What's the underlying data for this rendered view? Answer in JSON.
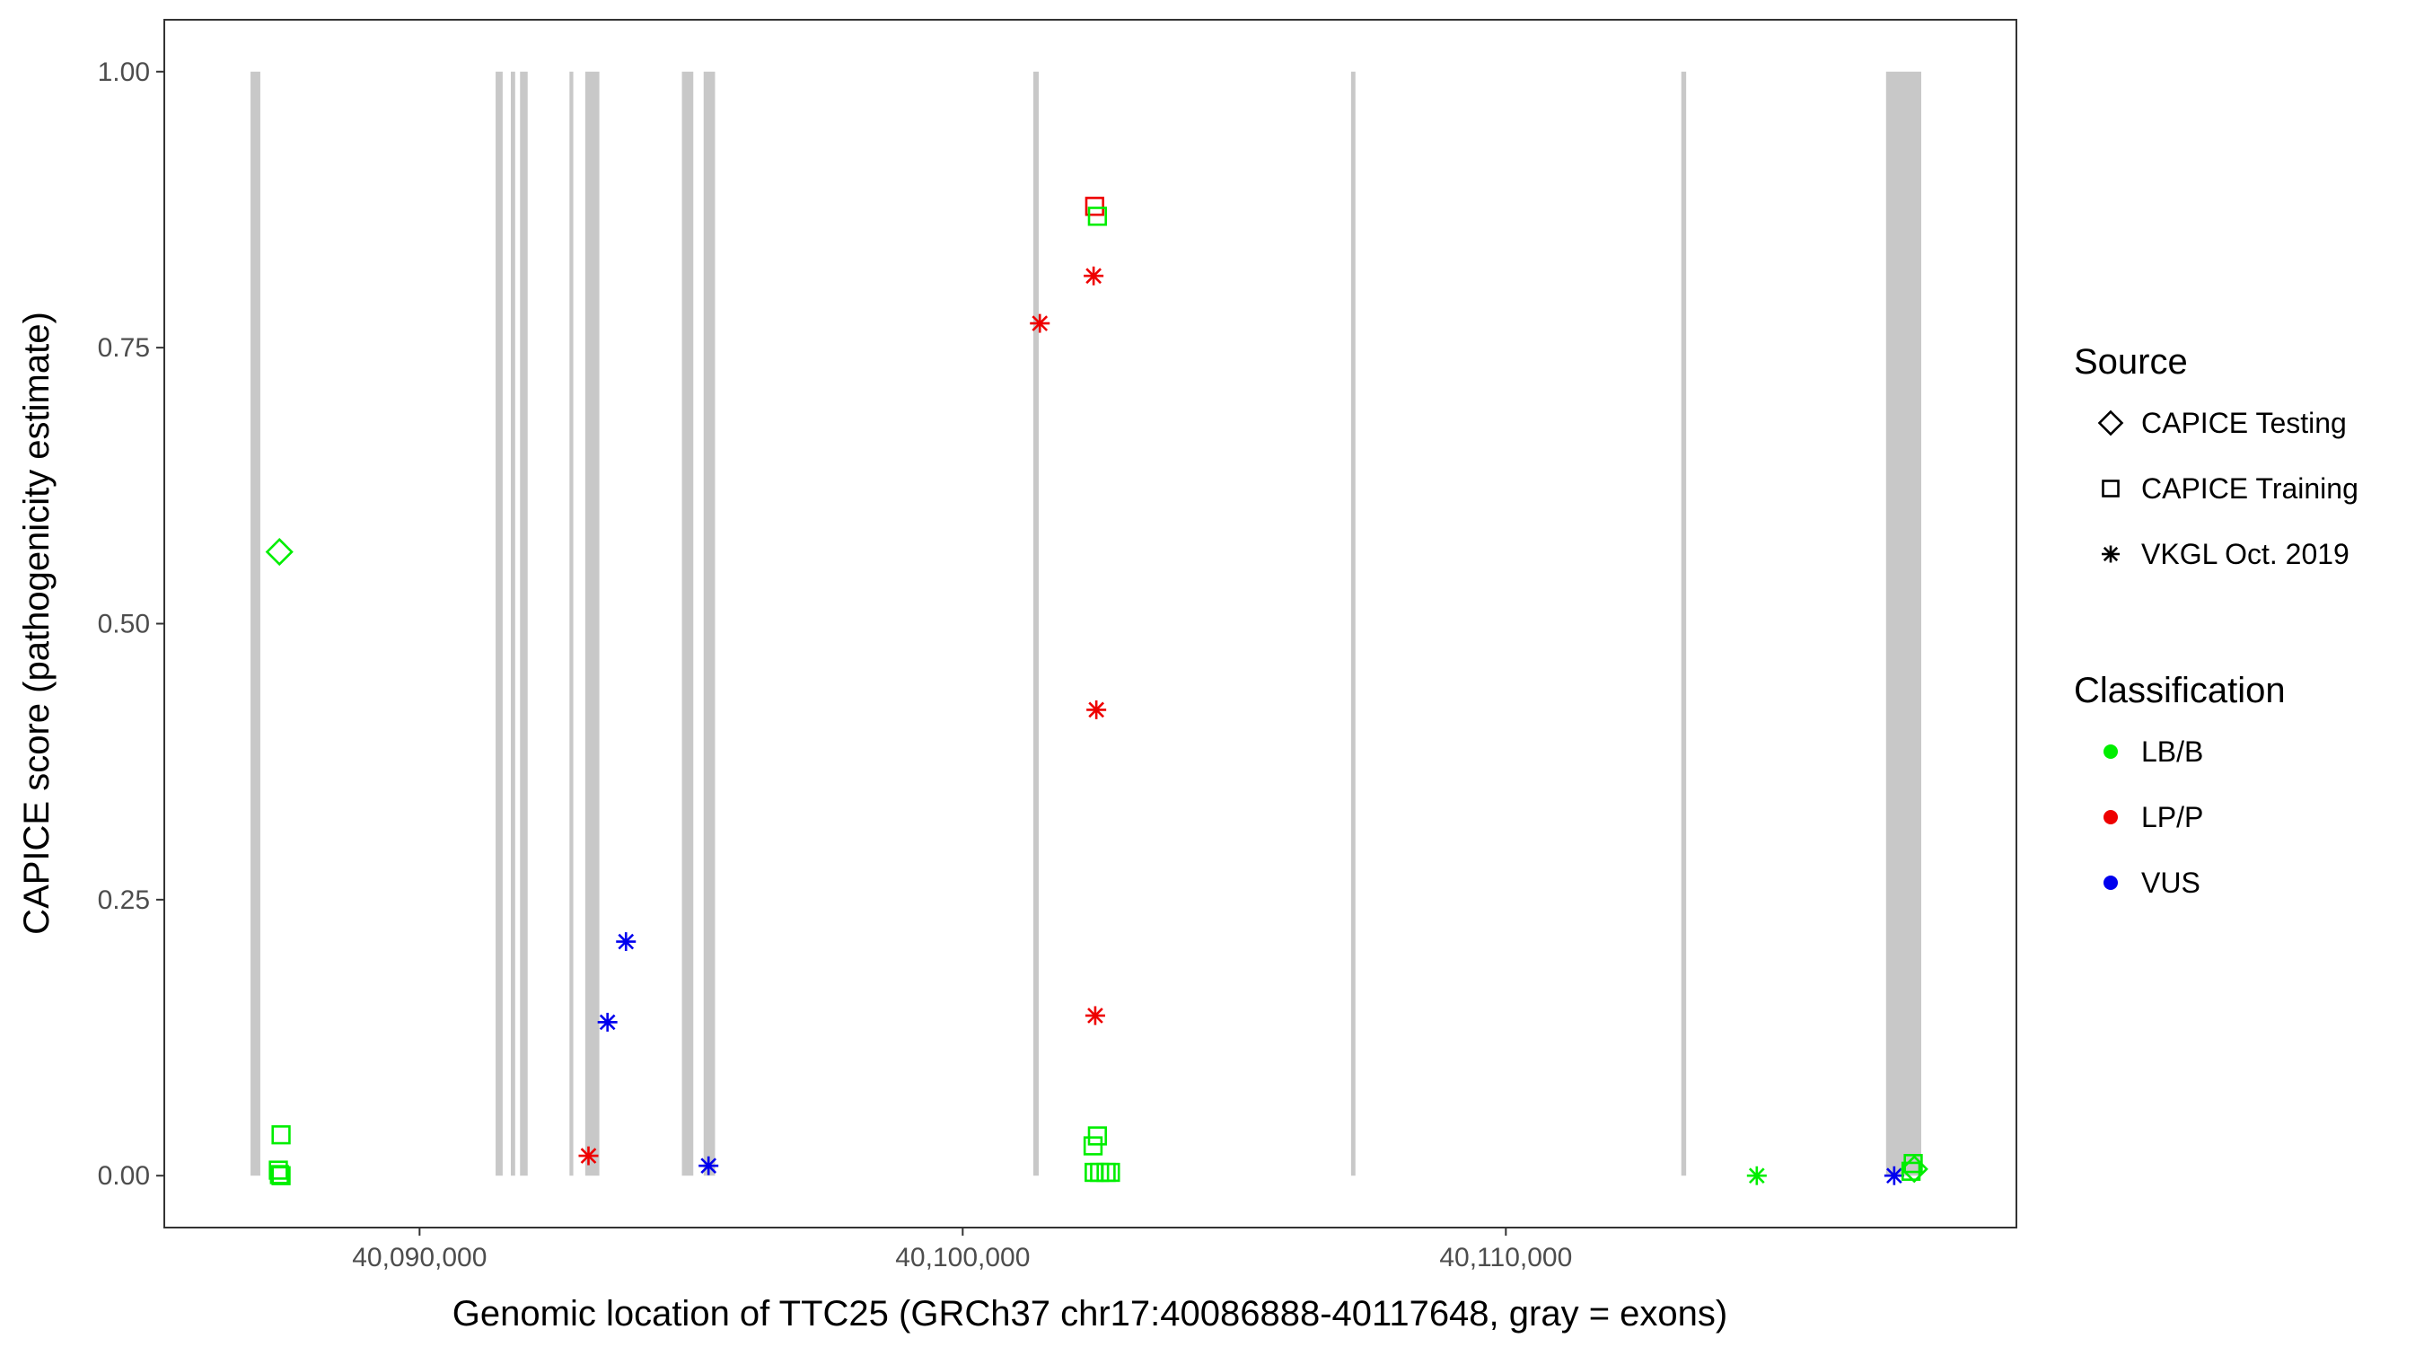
{
  "chart_data": {
    "type": "scatter",
    "xlabel": "Genomic location of TTC25 (GRCh37 chr17:40086888-40117648, gray = exons)",
    "ylabel": "CAPICE score (pathogenicity estimate)",
    "xlim": [
      40085300,
      40119400
    ],
    "ylim": [
      -0.047,
      1.047
    ],
    "x_ticks": [
      {
        "value": 40090000,
        "label": "40,090,000"
      },
      {
        "value": 40100000,
        "label": "40,100,000"
      },
      {
        "value": 40110000,
        "label": "40,110,000"
      }
    ],
    "y_ticks": [
      {
        "value": 0.0,
        "label": "0.00"
      },
      {
        "value": 0.25,
        "label": "0.25"
      },
      {
        "value": 0.5,
        "label": "0.50"
      },
      {
        "value": 0.75,
        "label": "0.75"
      },
      {
        "value": 1.0,
        "label": "1.00"
      }
    ],
    "grid": false,
    "exon_color": "#c8c8c8",
    "exons": [
      [
        40086888,
        40087068
      ],
      [
        40091400,
        40091530
      ],
      [
        40091680,
        40091760
      ],
      [
        40091850,
        40091990
      ],
      [
        40092760,
        40092830
      ],
      [
        40093050,
        40093310
      ],
      [
        40094830,
        40095040
      ],
      [
        40095230,
        40095440
      ],
      [
        40101300,
        40101400
      ],
      [
        40107150,
        40107230
      ],
      [
        40113230,
        40113320
      ],
      [
        40117000,
        40117648
      ]
    ],
    "legend": {
      "placement": "right",
      "source": {
        "title": "Source",
        "entries": [
          {
            "label": "CAPICE Testing",
            "shape": "diamond"
          },
          {
            "label": "CAPICE Training",
            "shape": "square"
          },
          {
            "label": "VKGL Oct. 2019",
            "shape": "asterisk"
          }
        ]
      },
      "classification": {
        "title": "Classification",
        "entries": [
          {
            "label": "LB/B",
            "color": "#00ee00"
          },
          {
            "label": "LP/P",
            "color": "#ee0000"
          },
          {
            "label": "VUS",
            "color": "#0000ee"
          }
        ]
      }
    },
    "points": [
      {
        "x": 40087420,
        "y": 0.565,
        "source": "CAPICE Testing",
        "class": "LB/B"
      },
      {
        "x": 40087450,
        "y": 0.037,
        "source": "CAPICE Training",
        "class": "LB/B"
      },
      {
        "x": 40087400,
        "y": 0.005,
        "source": "CAPICE Training",
        "class": "LB/B"
      },
      {
        "x": 40087420,
        "y": 0.001,
        "source": "CAPICE Training",
        "class": "LB/B"
      },
      {
        "x": 40087450,
        "y": 0.0,
        "source": "CAPICE Training",
        "class": "LB/B"
      },
      {
        "x": 40093110,
        "y": 0.018,
        "source": "VKGL Oct. 2019",
        "class": "LP/P"
      },
      {
        "x": 40093460,
        "y": 0.139,
        "source": "VKGL Oct. 2019",
        "class": "VUS"
      },
      {
        "x": 40093800,
        "y": 0.212,
        "source": "VKGL Oct. 2019",
        "class": "VUS"
      },
      {
        "x": 40095320,
        "y": 0.009,
        "source": "VKGL Oct. 2019",
        "class": "VUS"
      },
      {
        "x": 40101420,
        "y": 0.772,
        "source": "VKGL Oct. 2019",
        "class": "LP/P"
      },
      {
        "x": 40102410,
        "y": 0.815,
        "source": "VKGL Oct. 2019",
        "class": "LP/P"
      },
      {
        "x": 40102460,
        "y": 0.422,
        "source": "VKGL Oct. 2019",
        "class": "LP/P"
      },
      {
        "x": 40102440,
        "y": 0.145,
        "source": "VKGL Oct. 2019",
        "class": "LP/P"
      },
      {
        "x": 40102430,
        "y": 0.878,
        "source": "CAPICE Training",
        "class": "LP/P"
      },
      {
        "x": 40102480,
        "y": 0.869,
        "source": "CAPICE Training",
        "class": "LB/B"
      },
      {
        "x": 40102480,
        "y": 0.036,
        "source": "CAPICE Training",
        "class": "LB/B"
      },
      {
        "x": 40102400,
        "y": 0.027,
        "source": "CAPICE Training",
        "class": "LB/B"
      },
      {
        "x": 40102420,
        "y": 0.003,
        "source": "CAPICE Training",
        "class": "LB/B"
      },
      {
        "x": 40102520,
        "y": 0.003,
        "source": "CAPICE Training",
        "class": "LB/B"
      },
      {
        "x": 40102640,
        "y": 0.003,
        "source": "CAPICE Training",
        "class": "LB/B"
      },
      {
        "x": 40102720,
        "y": 0.003,
        "source": "CAPICE Training",
        "class": "LB/B"
      },
      {
        "x": 40114620,
        "y": 0.0,
        "source": "VKGL Oct. 2019",
        "class": "LB/B"
      },
      {
        "x": 40117150,
        "y": 0.0,
        "source": "VKGL Oct. 2019",
        "class": "VUS"
      },
      {
        "x": 40117500,
        "y": 0.011,
        "source": "CAPICE Training",
        "class": "LB/B"
      },
      {
        "x": 40117460,
        "y": 0.004,
        "source": "CAPICE Training",
        "class": "LB/B"
      },
      {
        "x": 40117520,
        "y": 0.006,
        "source": "CAPICE Testing",
        "class": "LB/B"
      }
    ]
  }
}
